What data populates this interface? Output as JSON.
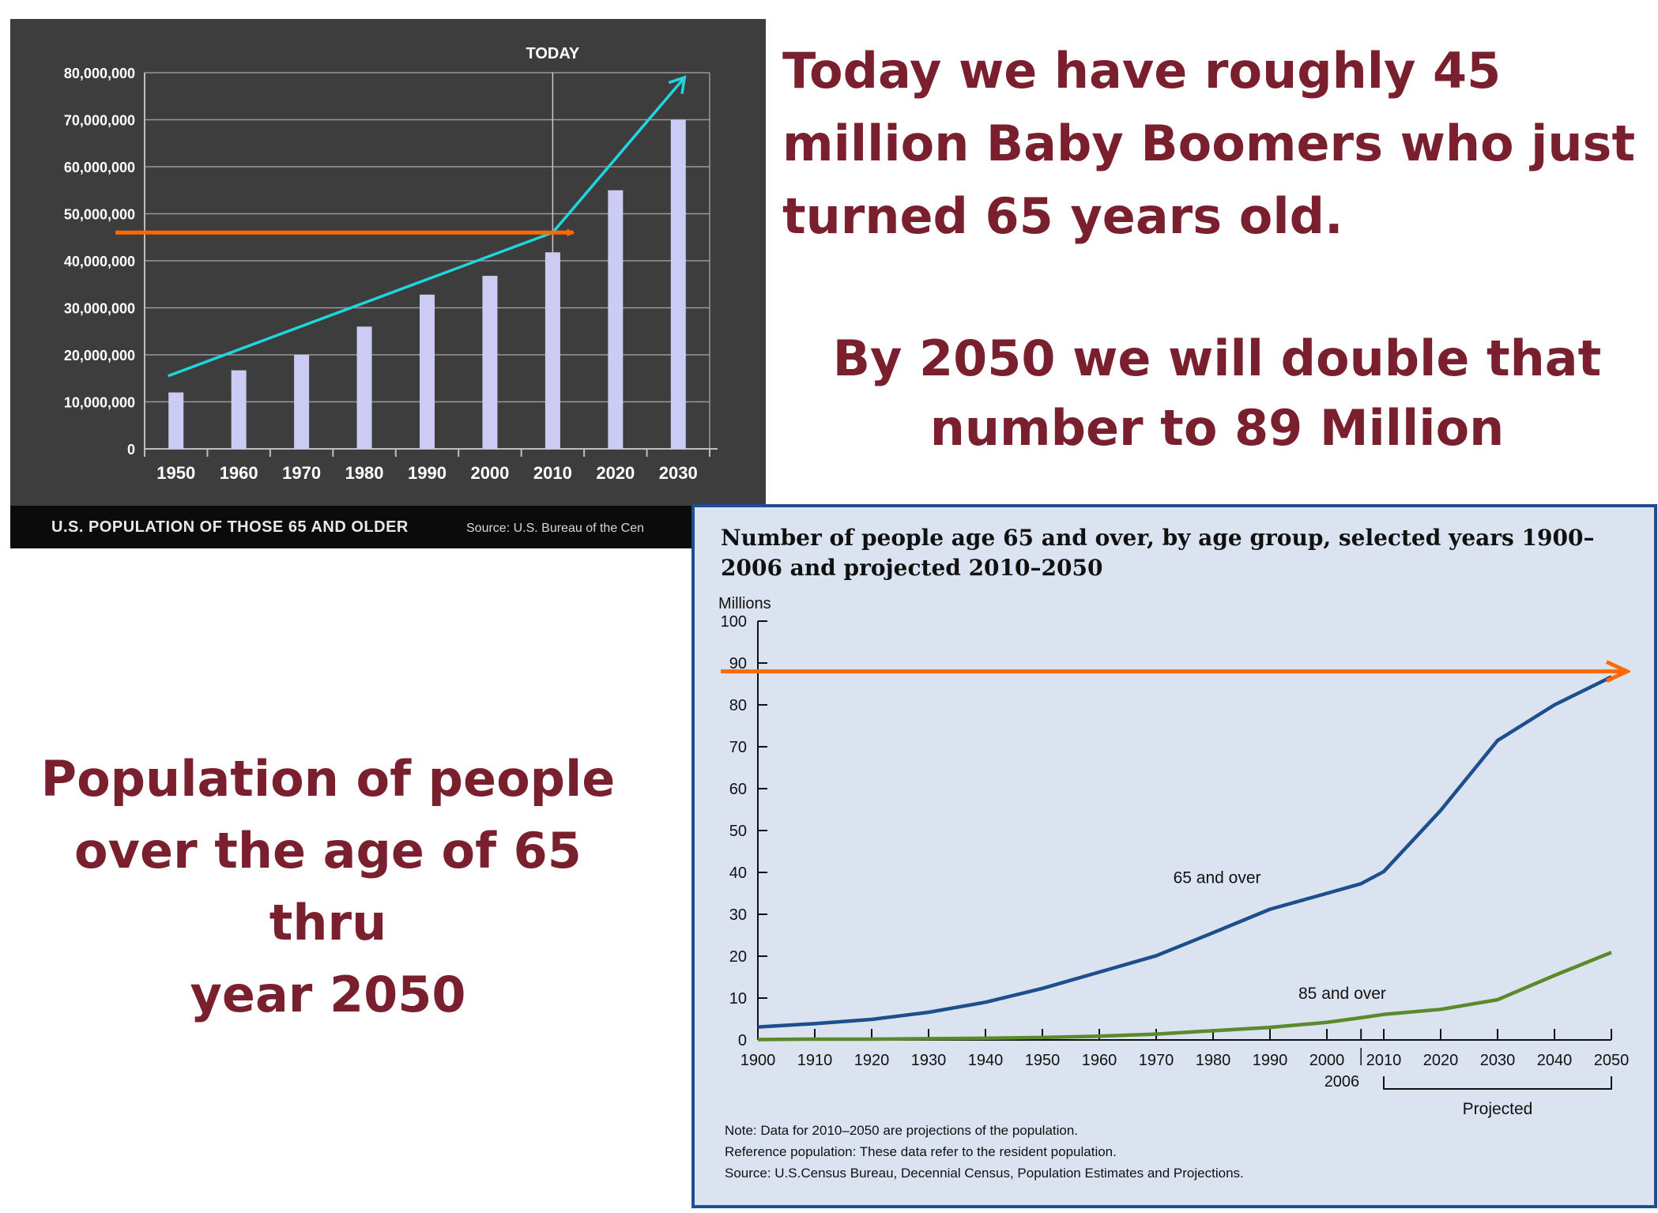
{
  "headlines": {
    "line1": "Today we have  roughly 45",
    "line2": "million  Baby Boomers who just",
    "line3": "turned 65 years old.",
    "line4": "By 2050 we will double that",
    "line5": "number to 89 Million",
    "line6": "Population of people",
    "line7": "over the age of 65 thru",
    "line8": "year 2050"
  },
  "colors": {
    "headline": "#7a1f2e",
    "orange_arrow": "#ff6a00",
    "cyan_arrow": "#1fd6e0",
    "bar": "#cbcbf4",
    "line_65": "#1c4f8c",
    "line_85": "#5a8a2a"
  },
  "chart_data": [
    {
      "type": "bar",
      "title": "U.S. POPULATION OF THOSE 65 AND OLDER",
      "source": "Source: U.S. Bureau of the Cen",
      "marker_label": "TODAY",
      "marker_category": "2010",
      "categories": [
        "1950",
        "1960",
        "1970",
        "1980",
        "1990",
        "2000",
        "2010",
        "2020",
        "2030"
      ],
      "values": [
        12000000,
        16700000,
        20000000,
        26000000,
        32800000,
        36800000,
        41800000,
        55000000,
        70000000
      ],
      "ylim": [
        0,
        80000000
      ],
      "yticks": [
        0,
        10000000,
        20000000,
        30000000,
        40000000,
        50000000,
        60000000,
        70000000,
        80000000
      ],
      "ytick_labels": [
        "0",
        "10,000,000",
        "20,000,000",
        "30,000,000",
        "40,000,000",
        "50,000,000",
        "60,000,000",
        "70,000,000",
        "80,000,000"
      ],
      "trend_arrow": {
        "from": [
          "1950",
          15500000
        ],
        "via": [
          "2010",
          46000000
        ],
        "to": [
          "2030",
          79000000
        ]
      },
      "reference_arrow": {
        "value": 46000000,
        "to_category": "2010"
      },
      "grid": true
    },
    {
      "type": "line",
      "title": "Number of people age 65 and over, by age group, selected years 1900–2006 and projected 2010–2050",
      "ylabel": "Millions",
      "ylim": [
        0,
        100
      ],
      "yticks": [
        0,
        10,
        20,
        30,
        40,
        50,
        60,
        70,
        80,
        90,
        100
      ],
      "xlim": [
        1900,
        2050
      ],
      "xticks": [
        1900,
        1910,
        1920,
        1930,
        1940,
        1950,
        1960,
        1970,
        1980,
        1990,
        2000,
        2010,
        2020,
        2030,
        2040,
        2050
      ],
      "extra_tick": {
        "value": 2006,
        "label": "2006"
      },
      "projected_label": "Projected",
      "projected_range": [
        2010,
        2050
      ],
      "reference_arrow": {
        "value": 88
      },
      "series": [
        {
          "name": "65 and over",
          "x": [
            1900,
            1910,
            1920,
            1930,
            1940,
            1950,
            1960,
            1970,
            1980,
            1990,
            2000,
            2006,
            2010,
            2020,
            2030,
            2040,
            2050
          ],
          "values": [
            3.1,
            3.9,
            4.9,
            6.6,
            9.0,
            12.3,
            16.2,
            20.1,
            25.6,
            31.2,
            35.0,
            37.3,
            40.2,
            54.8,
            71.5,
            80.0,
            86.7
          ]
        },
        {
          "name": "85 and over",
          "x": [
            1900,
            1910,
            1920,
            1930,
            1940,
            1950,
            1960,
            1970,
            1980,
            1990,
            2000,
            2006,
            2010,
            2020,
            2030,
            2040,
            2050
          ],
          "values": [
            0.1,
            0.2,
            0.2,
            0.3,
            0.4,
            0.6,
            0.9,
            1.4,
            2.2,
            3.0,
            4.2,
            5.3,
            6.1,
            7.3,
            9.6,
            15.4,
            20.9
          ]
        }
      ],
      "notes": [
        "Note: Data for 2010–2050 are projections of the population.",
        "Reference population: These data refer to the resident population.",
        "Source: U.S.Census Bureau, Decennial Census,  Population Estimates and Projections."
      ]
    }
  ]
}
